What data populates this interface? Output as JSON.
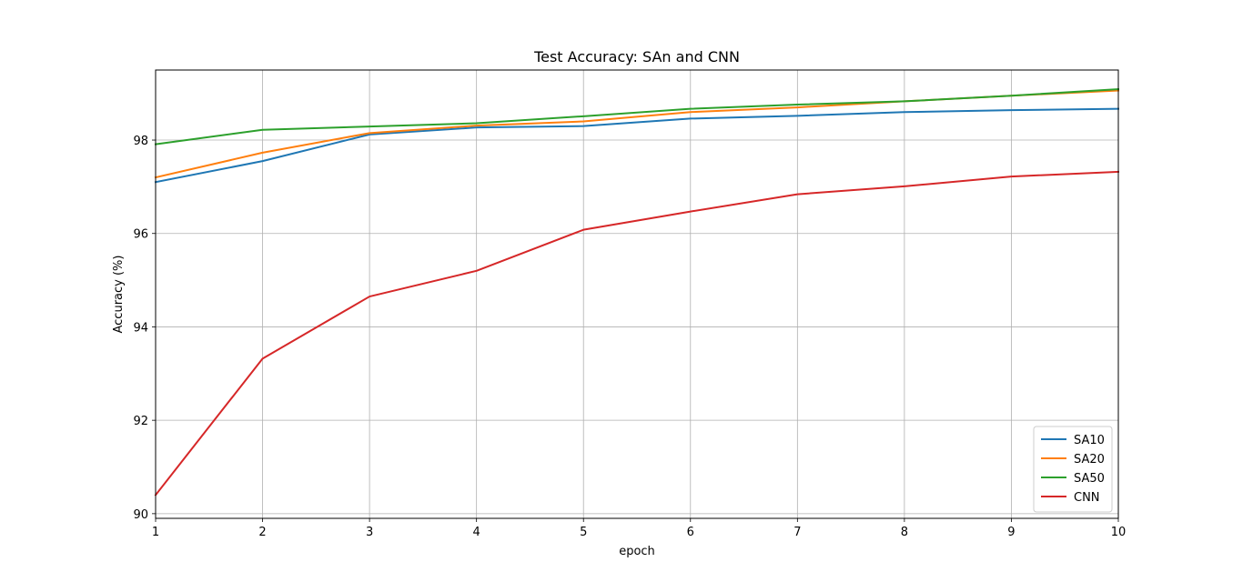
{
  "chart_data": {
    "type": "line",
    "title": "Test Accuracy: SAn and CNN",
    "xlabel": "epoch",
    "ylabel": "Accuracy (%)",
    "xlim": [
      1,
      10
    ],
    "ylim": [
      89.9,
      99.5
    ],
    "x_ticks": [
      1,
      2,
      3,
      4,
      5,
      6,
      7,
      8,
      9,
      10
    ],
    "y_ticks": [
      90,
      92,
      94,
      96,
      98
    ],
    "grid": true,
    "legend_position": "lower-right",
    "x": [
      1,
      2,
      3,
      4,
      5,
      6,
      7,
      8,
      9,
      10
    ],
    "series": [
      {
        "name": "SA10",
        "color": "#1f77b4",
        "values": [
          97.1,
          97.55,
          98.12,
          98.27,
          98.3,
          98.46,
          98.52,
          98.6,
          98.64,
          98.67
        ]
      },
      {
        "name": "SA20",
        "color": "#ff7f0e",
        "values": [
          97.2,
          97.73,
          98.15,
          98.31,
          98.4,
          98.6,
          98.7,
          98.83,
          98.95,
          99.06
        ]
      },
      {
        "name": "SA50",
        "color": "#2ca02c",
        "values": [
          97.91,
          98.22,
          98.29,
          98.36,
          98.51,
          98.67,
          98.76,
          98.83,
          98.95,
          99.09
        ]
      },
      {
        "name": "CNN",
        "color": "#d62728",
        "values": [
          90.4,
          93.32,
          94.65,
          95.2,
          96.08,
          96.47,
          96.84,
          97.01,
          97.22,
          97.32
        ]
      }
    ]
  }
}
